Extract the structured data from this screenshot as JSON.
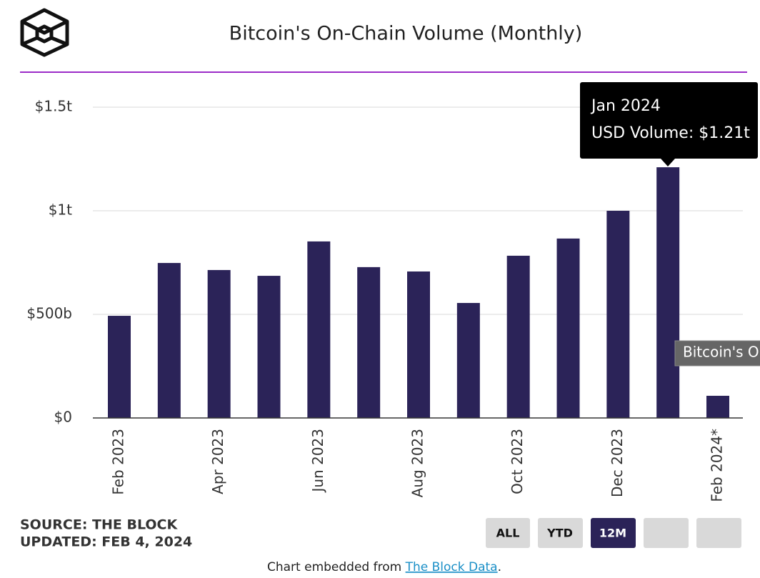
{
  "header": {
    "title": "Bitcoin's On-Chain Volume (Monthly)"
  },
  "chart_data": {
    "type": "bar",
    "color": "#2b2358",
    "grid": true,
    "categories": [
      "Feb 2023",
      null,
      "Apr 2023",
      null,
      "Jun 2023",
      null,
      "Aug 2023",
      null,
      "Oct 2023",
      null,
      "Dec 2023",
      null,
      "Feb 2024*"
    ],
    "values": [
      0.493,
      0.748,
      0.714,
      0.686,
      0.852,
      0.728,
      0.707,
      0.555,
      0.783,
      0.866,
      1.0,
      1.21,
      0.107
    ],
    "ylim": [
      0,
      1.5
    ],
    "yticks": [
      {
        "value": 0,
        "label": "$0"
      },
      {
        "value": 0.5,
        "label": "$500b"
      },
      {
        "value": 1,
        "label": "$1t"
      },
      {
        "value": 1.5,
        "label": "$1.5t"
      }
    ]
  },
  "tooltip": {
    "title": "Jan 2024",
    "text": "USD Volume: $1.21t"
  },
  "hover_tooltip": "Bitcoin's O",
  "source": "SOURCE: THE BLOCK",
  "updated": "UPDATED: FEB 4, 2024",
  "buttons": [
    "ALL",
    "YTD",
    "12M"
  ],
  "footer": {
    "prefix": "Chart embedded from ",
    "link": "The Block Data",
    "suffix": "."
  }
}
